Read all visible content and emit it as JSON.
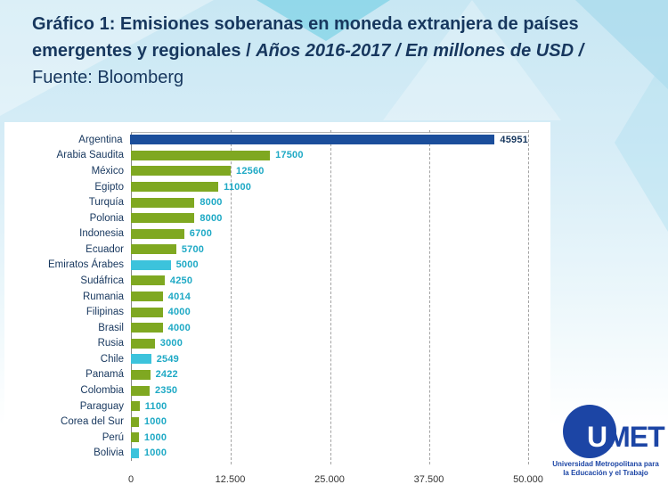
{
  "title": {
    "bold": "Gráfico 1: Emisiones soberanas en moneda extranjera de países emergentes y regionales / ",
    "italic": "Años 2016-2017 / En millones de USD / ",
    "regular": "Fuente: Bloomberg"
  },
  "chart_data": {
    "type": "bar",
    "orientation": "horizontal",
    "title": "Emisiones soberanas en moneda extranjera de países emergentes y regionales",
    "unit": "millones de USD",
    "period": "2016-2017",
    "source": "Bloomberg",
    "categories": [
      "Argentina",
      "Arabia Saudita",
      "México",
      "Egipto",
      "Turquía",
      "Polonia",
      "Indonesia",
      "Ecuador",
      "Emiratos Árabes",
      "Sudáfrica",
      "Rumania",
      "Filipinas",
      "Brasil",
      "Rusia",
      "Chile",
      "Panamá",
      "Colombia",
      "Paraguay",
      "Corea del Sur",
      "Perú",
      "Bolivia"
    ],
    "values": [
      45951,
      17500,
      12560,
      11000,
      8000,
      8000,
      6700,
      5700,
      5000,
      4250,
      4014,
      4000,
      4000,
      3000,
      2549,
      2422,
      2350,
      1100,
      1000,
      1000,
      1000
    ],
    "bar_colors": [
      "blue",
      "green",
      "green",
      "green",
      "green",
      "green",
      "green",
      "green",
      "cyan",
      "green",
      "green",
      "green",
      "green",
      "green",
      "cyan",
      "green",
      "green",
      "green",
      "green",
      "green",
      "cyan"
    ],
    "x_ticks": [
      "0",
      "12.500",
      "25.000",
      "37.500",
      "50.000"
    ],
    "xlim": [
      0,
      50000
    ],
    "grid": "vertical-dashed",
    "legend": "none",
    "value_labels_shown": true
  },
  "colors": {
    "blue": "#1b4e9b",
    "green": "#7fa821",
    "cyan": "#3cc3dc",
    "value_teal": "#1ea9c5",
    "value_navy": "#17375e"
  },
  "logo": {
    "acronym_first_letter": "U",
    "acronym_rest": "MET",
    "line1": "Universidad Metropolitana para",
    "line2": "la Educación y el Trabajo"
  }
}
